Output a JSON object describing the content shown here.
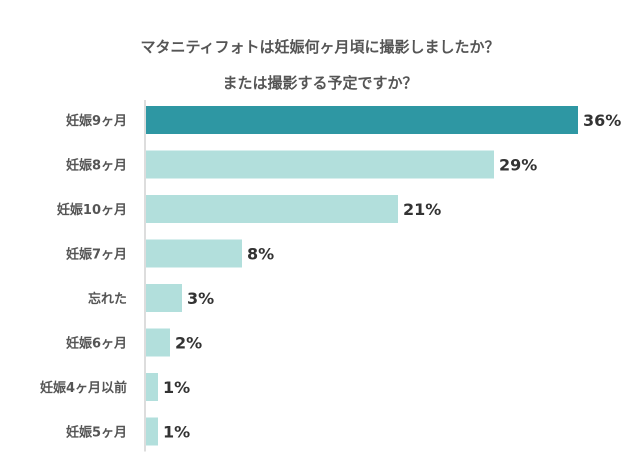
{
  "chart_data": {
    "type": "bar",
    "orientation": "horizontal",
    "title": "マタニティフォトは妊娠何ヶ月頃に撮影しましたか？",
    "subtitle": "または撮影する予定ですか？",
    "categories": [
      "妊娠9ヶ月",
      "妊娠8ヶ月",
      "妊娠10ヶ月",
      "妊娠7ヶ月",
      "忘れた",
      "妊娠6ヶ月",
      "妊娠4ヶ月以前",
      "妊娠5ヶ月"
    ],
    "values": [
      36,
      29,
      21,
      8,
      3,
      2,
      1,
      1
    ],
    "value_labels": [
      "36%",
      "29%",
      "21%",
      "8%",
      "3%",
      "2%",
      "1%",
      "1%"
    ],
    "unit": "%",
    "xlim": [
      0,
      36
    ],
    "grid": false,
    "legend": "none",
    "colors": {
      "highlight": "#2e97a3",
      "bar": "#b2dfdc",
      "axis": "#bbbbbb"
    },
    "highlight_index": 0
  }
}
